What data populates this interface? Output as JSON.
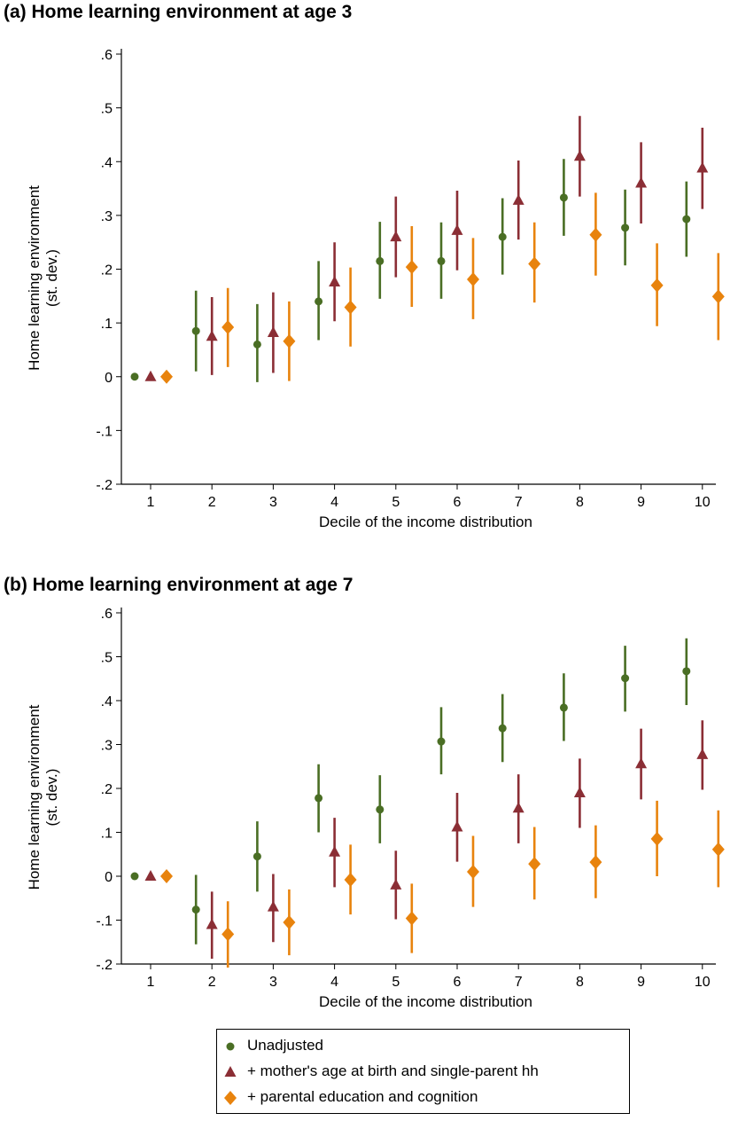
{
  "colors": {
    "unadjusted": "#4a6e24",
    "mother": "#8b2e35",
    "parental": "#e8830d"
  },
  "legend": [
    {
      "label": "Unadjusted",
      "color": "#4a6e24",
      "marker": "circle"
    },
    {
      "label": "+ mother's age at birth and single-parent hh",
      "color": "#8b2e35",
      "marker": "triangle"
    },
    {
      "label": "+ parental education and cognition",
      "color": "#e8830d",
      "marker": "diamond"
    }
  ],
  "chart_data": [
    {
      "type": "scatter",
      "title": "(a) Home learning environment at age 3",
      "xlabel": "Decile of the income distribution",
      "ylabel_lines": [
        "Home learning environment",
        "(st. dev.)"
      ],
      "ylim": [
        -0.2,
        0.6
      ],
      "yticks": [
        -0.2,
        -0.1,
        0,
        0.1,
        0.2,
        0.3,
        0.4,
        0.5,
        0.6
      ],
      "yticklabels": [
        "-.2",
        "-.1",
        "0",
        ".1",
        ".2",
        ".3",
        ".4",
        ".5",
        ".6"
      ],
      "x": [
        1,
        2,
        3,
        4,
        5,
        6,
        7,
        8,
        9,
        10
      ],
      "series": [
        {
          "name": "Unadjusted",
          "marker": "circle",
          "values": [
            0,
            0.085,
            0.06,
            0.14,
            0.215,
            0.215,
            0.26,
            0.333,
            0.277,
            0.293
          ],
          "ci_low": [
            0,
            0.01,
            -0.01,
            0.068,
            0.145,
            0.145,
            0.19,
            0.262,
            0.207,
            0.223
          ],
          "ci_high": [
            0,
            0.16,
            0.135,
            0.215,
            0.288,
            0.287,
            0.332,
            0.405,
            0.348,
            0.363
          ]
        },
        {
          "name": "+ mother's age at birth and single-parent hh",
          "marker": "triangle",
          "values": [
            0,
            0.075,
            0.082,
            0.176,
            0.26,
            0.272,
            0.328,
            0.41,
            0.36,
            0.388
          ],
          "ci_low": [
            0,
            0.003,
            0.007,
            0.103,
            0.185,
            0.198,
            0.255,
            0.335,
            0.285,
            0.312
          ],
          "ci_high": [
            0,
            0.148,
            0.157,
            0.25,
            0.335,
            0.346,
            0.402,
            0.485,
            0.436,
            0.463
          ]
        },
        {
          "name": "+ parental education and cognition",
          "marker": "diamond",
          "values": [
            0,
            0.092,
            0.066,
            0.129,
            0.204,
            0.181,
            0.21,
            0.264,
            0.17,
            0.149
          ],
          "ci_low": [
            0,
            0.018,
            -0.008,
            0.056,
            0.13,
            0.107,
            0.138,
            0.188,
            0.094,
            0.068
          ],
          "ci_high": [
            0,
            0.165,
            0.14,
            0.203,
            0.28,
            0.258,
            0.287,
            0.342,
            0.248,
            0.23
          ]
        }
      ]
    },
    {
      "type": "scatter",
      "title": "(b) Home learning environment at age 7",
      "xlabel": "Decile of the income distribution",
      "ylabel_lines": [
        "Home learning environment",
        "(st. dev.)"
      ],
      "ylim": [
        -0.2,
        0.6
      ],
      "yticks": [
        -0.2,
        -0.1,
        0,
        0.1,
        0.2,
        0.3,
        0.4,
        0.5,
        0.6
      ],
      "yticklabels": [
        "-.2",
        "-.1",
        "0",
        ".1",
        ".2",
        ".3",
        ".4",
        ".5",
        ".6"
      ],
      "x": [
        1,
        2,
        3,
        4,
        5,
        6,
        7,
        8,
        9,
        10
      ],
      "series": [
        {
          "name": "Unadjusted",
          "marker": "circle",
          "values": [
            0,
            -0.076,
            0.045,
            0.178,
            0.152,
            0.307,
            0.337,
            0.384,
            0.451,
            0.467
          ],
          "ci_low": [
            0,
            -0.155,
            -0.035,
            0.1,
            0.075,
            0.232,
            0.26,
            0.308,
            0.375,
            0.39
          ],
          "ci_high": [
            0,
            0.003,
            0.125,
            0.255,
            0.23,
            0.385,
            0.415,
            0.462,
            0.525,
            0.542
          ]
        },
        {
          "name": "+ mother's age at birth and single-parent hh",
          "marker": "triangle",
          "values": [
            0,
            -0.11,
            -0.07,
            0.055,
            -0.02,
            0.112,
            0.155,
            0.19,
            0.256,
            0.277
          ],
          "ci_low": [
            0,
            -0.188,
            -0.15,
            -0.025,
            -0.098,
            0.033,
            0.075,
            0.11,
            0.175,
            0.197
          ],
          "ci_high": [
            0,
            -0.035,
            0.005,
            0.133,
            0.058,
            0.19,
            0.232,
            0.268,
            0.336,
            0.355
          ]
        },
        {
          "name": "+ parental education and cognition",
          "marker": "diamond",
          "values": [
            0,
            -0.132,
            -0.105,
            -0.008,
            -0.096,
            0.01,
            0.028,
            0.032,
            0.085,
            0.061
          ],
          "ci_low": [
            0,
            -0.208,
            -0.18,
            -0.087,
            -0.175,
            -0.07,
            -0.053,
            -0.05,
            0.0,
            -0.025
          ],
          "ci_high": [
            0,
            -0.057,
            -0.03,
            0.072,
            -0.017,
            0.092,
            0.112,
            0.116,
            0.172,
            0.15
          ]
        }
      ]
    }
  ]
}
